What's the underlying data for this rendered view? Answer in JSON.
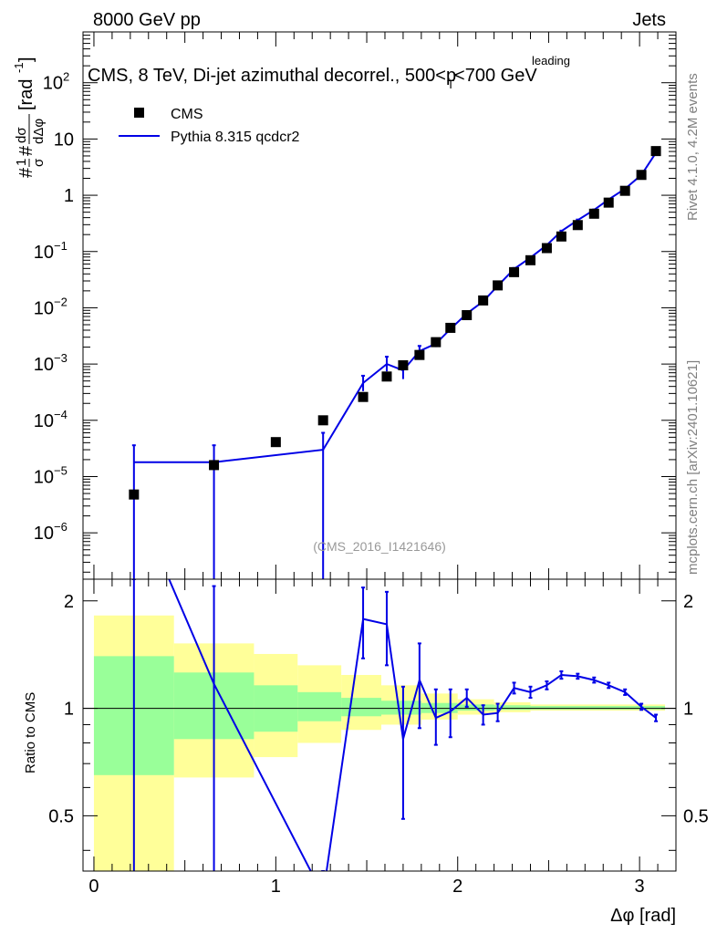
{
  "header": {
    "left": "8000 GeV pp",
    "right": "Jets",
    "title": "CMS, 8 TeV, Di-jet azimuthal decorrel., 500<p",
    "title_sup": "leading",
    "title_sub": "T",
    "title_tail": "<700 GeV",
    "watermark": "(CMS_2016_I1421646)",
    "side_top": "Rivet 4.1.0,  4.2M events",
    "side_bottom": "mcplots.cern.ch [arXiv:2401.10621]"
  },
  "chart_data": [
    {
      "type": "scatter",
      "title": "CMS, 8 TeV, Di-jet azimuthal decorrel., 500<p_T^leading<700 GeV",
      "ylabel": "#1/σ # dσ/dΔφ [rad^-1]",
      "ylabel_parts": {
        "lead": "#",
        "one": "1",
        "sigma": "σ",
        "hash": "#",
        "num": "dσ",
        "den": "dΔφ",
        "unit": "[rad",
        "exp": "-1",
        "close": "]"
      },
      "yscale": "log",
      "ylim": [
        1.5e-07,
        800
      ],
      "xlim": [
        -0.06,
        3.2
      ],
      "y_ticks": [
        {
          "v": 1e-06,
          "base": "10",
          "exp": "−6"
        },
        {
          "v": 1e-05,
          "base": "10",
          "exp": "−5"
        },
        {
          "v": 0.0001,
          "base": "10",
          "exp": "−4"
        },
        {
          "v": 0.001,
          "base": "10",
          "exp": "−3"
        },
        {
          "v": 0.01,
          "base": "10",
          "exp": "−2"
        },
        {
          "v": 0.1,
          "base": "10",
          "exp": "−1"
        },
        {
          "v": 1,
          "base": "1",
          "exp": ""
        },
        {
          "v": 10,
          "base": "10",
          "exp": ""
        },
        {
          "v": 100,
          "base": "10",
          "exp": "2"
        }
      ],
      "legend": [
        {
          "label": "CMS",
          "style": "marker"
        },
        {
          "label": "Pythia 8.315 qcdcr2",
          "style": "line"
        }
      ],
      "legend_position": "top-left",
      "series": [
        {
          "name": "CMS",
          "x": [
            0.22,
            0.66,
            1.0,
            1.26,
            1.48,
            1.61,
            1.7,
            1.79,
            1.88,
            1.96,
            2.05,
            2.14,
            2.22,
            2.31,
            2.4,
            2.49,
            2.57,
            2.66,
            2.75,
            2.83,
            2.92,
            3.01,
            3.09
          ],
          "y": [
            4.8e-06,
            1.6e-05,
            4.1e-05,
            0.0001,
            0.00026,
            0.0006,
            0.00095,
            0.00145,
            0.00245,
            0.0044,
            0.0074,
            0.0135,
            0.025,
            0.043,
            0.07,
            0.115,
            0.185,
            0.295,
            0.47,
            0.74,
            1.2,
            2.3,
            6.1
          ]
        },
        {
          "name": "Pythia 8.315 qcdcr2",
          "x": [
            0.22,
            0.66,
            1.26,
            1.48,
            1.61,
            1.7,
            1.79,
            1.88,
            1.96,
            2.05,
            2.14,
            2.22,
            2.31,
            2.4,
            2.49,
            2.57,
            2.66,
            2.75,
            2.83,
            2.92,
            3.01,
            3.09
          ],
          "y": [
            1.8e-05,
            1.8e-05,
            3e-05,
            0.00046,
            0.001,
            0.00077,
            0.0017,
            0.0023,
            0.0042,
            0.0079,
            0.013,
            0.0245,
            0.049,
            0.078,
            0.13,
            0.23,
            0.36,
            0.55,
            0.84,
            1.3,
            2.3,
            5.7
          ],
          "err_up": [
            3.6e-05,
            3.6e-05,
            6e-05,
            0.00062,
            0.00135,
            0.00105,
            0.0021,
            0.0026,
            0.0046,
            0.0085,
            0.0138,
            0.026,
            0.051,
            0.081,
            0.134,
            0.235,
            0.37,
            0.56,
            0.86,
            1.33,
            2.35,
            5.8
          ],
          "err_down": [
            1e-09,
            1e-09,
            1e-09,
            0.00033,
            0.00074,
            0.00054,
            0.00135,
            0.002,
            0.0038,
            0.0074,
            0.0122,
            0.0235,
            0.047,
            0.075,
            0.127,
            0.225,
            0.35,
            0.54,
            0.82,
            1.27,
            2.25,
            5.6
          ]
        }
      ]
    },
    {
      "type": "line",
      "ylabel": "Ratio to CMS",
      "xlabel": "Δφ [rad]",
      "ylim": [
        0.35,
        2.3
      ],
      "xlim": [
        -0.06,
        3.2
      ],
      "x_ticks": [
        0,
        1,
        2,
        3
      ],
      "y_ticks": [
        0.5,
        1,
        2
      ],
      "bands": {
        "edges": [
          0,
          0.44,
          0.88,
          1.12,
          1.36,
          1.58,
          1.8,
          2.0,
          2.2,
          2.4,
          3.14
        ],
        "green_lo": [
          0.65,
          0.82,
          0.86,
          0.92,
          0.95,
          0.96,
          0.97,
          0.985,
          0.99,
          0.993
        ],
        "green_hi": [
          1.4,
          1.26,
          1.16,
          1.11,
          1.07,
          1.05,
          1.035,
          1.025,
          1.02,
          1.015
        ],
        "yellow_lo": [
          0.3,
          0.64,
          0.73,
          0.8,
          0.87,
          0.9,
          0.93,
          0.96,
          0.975,
          0.985
        ],
        "yellow_hi": [
          1.82,
          1.52,
          1.42,
          1.32,
          1.24,
          1.16,
          1.1,
          1.06,
          1.04,
          1.025
        ]
      },
      "series": [
        {
          "name": "Pythia 8.315 qcdcr2 / CMS",
          "x": [
            0.22,
            0.66,
            1.26,
            1.48,
            1.61,
            1.7,
            1.79,
            1.88,
            1.96,
            2.05,
            2.14,
            2.22,
            2.31,
            2.4,
            2.49,
            2.57,
            2.66,
            2.75,
            2.83,
            2.92,
            3.01,
            3.09
          ],
          "y": [
            3.9,
            1.17,
            0.3,
            1.78,
            1.72,
            0.82,
            1.2,
            0.94,
            0.98,
            1.07,
            0.96,
            0.97,
            1.14,
            1.11,
            1.16,
            1.24,
            1.23,
            1.2,
            1.16,
            1.11,
            1.01,
            0.94
          ],
          "err_up": [
            4.1,
            2.2,
            0.32,
            2.18,
            2.12,
            1.15,
            1.52,
            1.13,
            1.13,
            1.13,
            1.02,
            1.03,
            1.18,
            1.15,
            1.19,
            1.27,
            1.25,
            1.22,
            1.18,
            1.13,
            1.03,
            0.96
          ],
          "err_down": [
            0.0,
            0.0,
            0.0,
            1.38,
            1.32,
            0.49,
            0.88,
            0.79,
            0.83,
            1.01,
            0.9,
            0.92,
            1.1,
            1.07,
            1.13,
            1.21,
            1.21,
            1.18,
            1.14,
            1.09,
            0.99,
            0.92
          ]
        }
      ]
    }
  ]
}
